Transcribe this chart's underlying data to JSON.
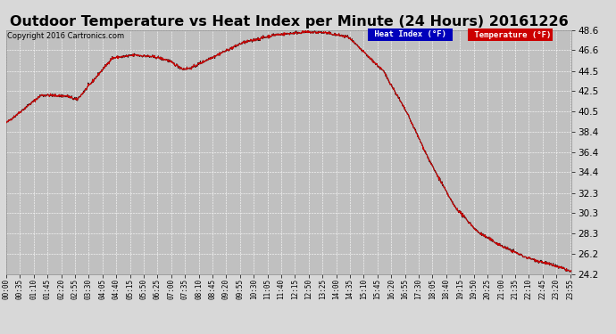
{
  "title": "Outdoor Temperature vs Heat Index per Minute (24 Hours) 20161226",
  "copyright": "Copyright 2016 Cartronics.com",
  "ylim": [
    24.2,
    48.6
  ],
  "yticks": [
    24.2,
    26.2,
    28.3,
    30.3,
    32.3,
    34.4,
    36.4,
    38.4,
    40.5,
    42.5,
    44.5,
    46.6,
    48.6
  ],
  "bg_color": "#d8d8d8",
  "plot_bg_color": "#c0c0c0",
  "grid_color": "#ffffff",
  "line_color_temp": "#cc0000",
  "line_color_heat": "#111111",
  "legend_heat_bg": "#0000bb",
  "legend_temp_bg": "#cc0000",
  "title_fontsize": 11.5,
  "copyright_fontsize": 6,
  "xtick_fontsize": 5.5,
  "ytick_fontsize": 7.5,
  "tick_interval": 35,
  "n_minutes": 1440,
  "keypoints_x": [
    0,
    90,
    155,
    180,
    270,
    310,
    330,
    380,
    410,
    450,
    470,
    510,
    600,
    680,
    760,
    810,
    870,
    960,
    1020,
    1080,
    1140,
    1200,
    1260,
    1320,
    1380,
    1420,
    1439
  ],
  "keypoints_y": [
    39.3,
    42.1,
    42.0,
    41.6,
    45.8,
    46.0,
    46.1,
    45.9,
    45.6,
    44.7,
    44.8,
    45.6,
    47.3,
    48.1,
    48.4,
    48.35,
    47.9,
    44.5,
    40.3,
    35.3,
    31.0,
    28.4,
    27.0,
    25.9,
    25.2,
    24.7,
    24.4
  ]
}
